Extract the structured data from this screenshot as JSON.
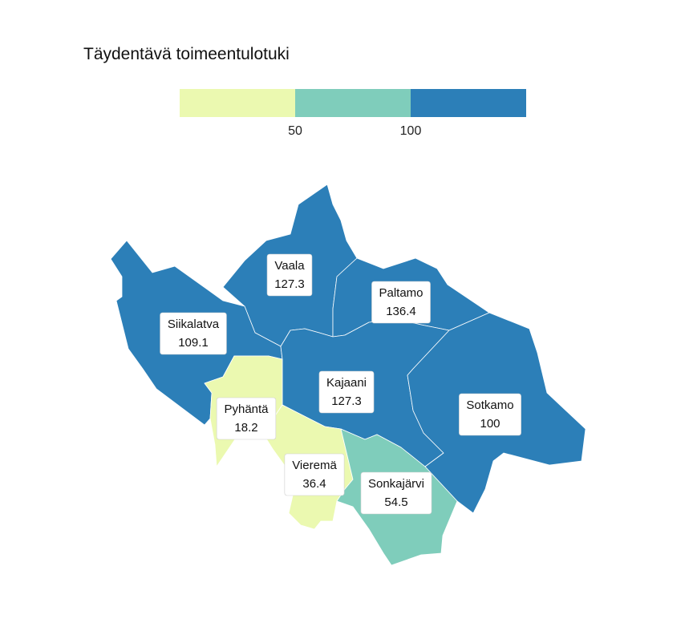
{
  "title": "Täydentävä toimeentulotuki",
  "legend": {
    "bins": [
      {
        "min": null,
        "max": 50,
        "color": "#ebf9b0"
      },
      {
        "min": 50,
        "max": 100,
        "color": "#7fcdbb"
      },
      {
        "min": 100,
        "max": null,
        "color": "#2c7fb8"
      }
    ],
    "ticks": [
      "50",
      "100"
    ]
  },
  "regions": [
    {
      "name": "Vaala",
      "value": "127.3"
    },
    {
      "name": "Paltamo",
      "value": "136.4"
    },
    {
      "name": "Siikalatva",
      "value": "109.1"
    },
    {
      "name": "Kajaani",
      "value": "127.3"
    },
    {
      "name": "Sotkamo",
      "value": "100"
    },
    {
      "name": "Pyhäntä",
      "value": "18.2"
    },
    {
      "name": "Vieremä",
      "value": "36.4"
    },
    {
      "name": "Sonkajärvi",
      "value": "54.5"
    }
  ]
}
